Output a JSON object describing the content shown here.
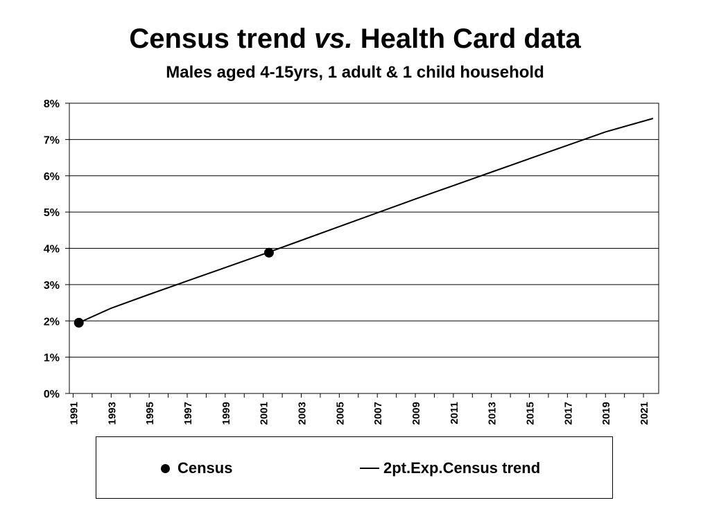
{
  "chart_data": {
    "type": "line",
    "title_main": "Census trend",
    "title_italic": "vs.",
    "title_rest": "Health Card data",
    "subtitle": "Males aged 4-15yrs, 1 adult & 1 child household",
    "xlabel": "",
    "ylabel": "",
    "xlim": [
      1990.8,
      2021.8
    ],
    "ylim": [
      0,
      8
    ],
    "y_ticks": [
      "0%",
      "1%",
      "2%",
      "3%",
      "4%",
      "5%",
      "6%",
      "7%",
      "8%"
    ],
    "x_ticks": [
      "1991",
      "1993",
      "1995",
      "1997",
      "1999",
      "2001",
      "2003",
      "2005",
      "2007",
      "2009",
      "2011",
      "2013",
      "2015",
      "2017",
      "2019",
      "2021"
    ],
    "grid": true,
    "legend_position": "bottom",
    "series": [
      {
        "name": "Census",
        "style": "markers",
        "x": [
          1991.3,
          2001.3
        ],
        "y": [
          1.95,
          3.88
        ]
      },
      {
        "name": "2pt.Exp.Census trend",
        "style": "line",
        "x": [
          1991.3,
          1993,
          1995,
          1997,
          1999,
          2001,
          2003,
          2005,
          2007,
          2009,
          2011,
          2013,
          2015,
          2017,
          2019,
          2021.5
        ],
        "y": [
          1.95,
          2.35,
          2.73,
          3.1,
          3.47,
          3.84,
          4.22,
          4.6,
          4.98,
          5.36,
          5.73,
          6.1,
          6.47,
          6.84,
          7.21,
          7.58
        ]
      }
    ]
  }
}
